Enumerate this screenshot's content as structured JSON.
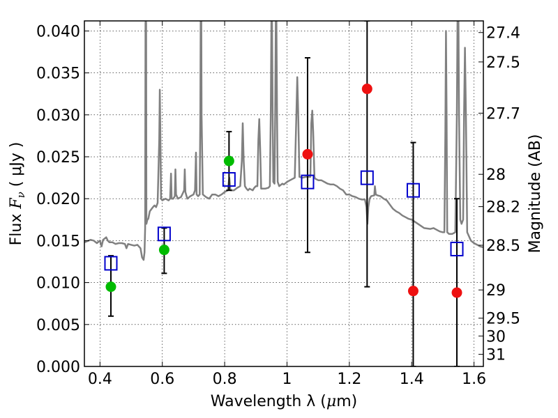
{
  "chart_data": {
    "type": "scatter",
    "xlabel": "Wavelength  λ (μm)",
    "ylabel": "Flux  F_ν  ( μJy )",
    "ylabel_parts": {
      "prefix": "Flux  ",
      "symbol": "F",
      "subscript": "ν",
      "suffix": "  ( μJy )"
    },
    "xlabel_parts": {
      "prefix": "Wavelength  λ (",
      "mu": "μ",
      "suffix": "m)"
    },
    "ylabel_right": "Magnitude (AB)",
    "xlim": [
      0.35,
      1.63
    ],
    "ylim": [
      0.0,
      0.0412
    ],
    "grid": true,
    "x_ticks": [
      {
        "value": 0.4,
        "label": "0.4"
      },
      {
        "value": 0.6,
        "label": "0.6"
      },
      {
        "value": 0.8,
        "label": "0.8"
      },
      {
        "value": 1.0,
        "label": "1"
      },
      {
        "value": 1.2,
        "label": "1.2"
      },
      {
        "value": 1.4,
        "label": "1.4"
      },
      {
        "value": 1.6,
        "label": "1.6"
      }
    ],
    "y_ticks": [
      {
        "value": 0.0,
        "label": "0.000"
      },
      {
        "value": 0.005,
        "label": "0.005"
      },
      {
        "value": 0.01,
        "label": "0.010"
      },
      {
        "value": 0.015,
        "label": "0.015"
      },
      {
        "value": 0.02,
        "label": "0.020"
      },
      {
        "value": 0.025,
        "label": "0.025"
      },
      {
        "value": 0.03,
        "label": "0.030"
      },
      {
        "value": 0.035,
        "label": "0.035"
      },
      {
        "value": 0.04,
        "label": "0.040"
      }
    ],
    "mag_ticks": [
      {
        "value": 27.4,
        "label": "27.4"
      },
      {
        "value": 27.5,
        "label": "27.5"
      },
      {
        "value": 27.7,
        "label": "27.7"
      },
      {
        "value": 28.0,
        "label": "28"
      },
      {
        "value": 28.2,
        "label": "28.2"
      },
      {
        "value": 28.5,
        "label": "28.5"
      },
      {
        "value": 29.0,
        "label": "29"
      },
      {
        "value": 29.5,
        "label": "29.5"
      },
      {
        "value": 30.0,
        "label": "30"
      },
      {
        "value": 31.0,
        "label": "31"
      }
    ],
    "series": [
      {
        "kind": "errorbar-points",
        "color": "#00bb00",
        "points": [
          {
            "x": 0.435,
            "y": 0.0095,
            "lo": 0.006,
            "hi": 0.0132
          },
          {
            "x": 0.606,
            "y": 0.0139,
            "lo": 0.0111,
            "hi": 0.0165
          },
          {
            "x": 0.814,
            "y": 0.0245,
            "lo": 0.021,
            "hi": 0.028
          }
        ]
      },
      {
        "kind": "errorbar-points",
        "color": "#ee1111",
        "points": [
          {
            "x": 1.066,
            "y": 0.0253,
            "lo": 0.0136,
            "hi": 0.0368
          },
          {
            "x": 1.257,
            "y": 0.0331,
            "lo": 0.0095,
            "hi": 0.0412
          },
          {
            "x": 1.405,
            "y": 0.009,
            "lo": 0.0,
            "hi": 0.0267
          },
          {
            "x": 1.545,
            "y": 0.0088,
            "lo": 0.0,
            "hi": 0.02
          }
        ]
      },
      {
        "kind": "open-squares",
        "color": "#0000cc",
        "points": [
          {
            "x": 0.435,
            "y": 0.0123
          },
          {
            "x": 0.606,
            "y": 0.0158
          },
          {
            "x": 0.814,
            "y": 0.0223
          },
          {
            "x": 1.066,
            "y": 0.022
          },
          {
            "x": 1.257,
            "y": 0.0225
          },
          {
            "x": 1.405,
            "y": 0.021
          },
          {
            "x": 1.545,
            "y": 0.014
          }
        ]
      },
      {
        "kind": "spectrum",
        "color": "#808080",
        "points": [
          [
            0.35,
            0.0148
          ],
          [
            0.37,
            0.0151
          ],
          [
            0.38,
            0.015
          ],
          [
            0.39,
            0.0147
          ],
          [
            0.4,
            0.015
          ],
          [
            0.405,
            0.0143
          ],
          [
            0.41,
            0.0151
          ],
          [
            0.42,
            0.0154
          ],
          [
            0.425,
            0.015
          ],
          [
            0.43,
            0.0148
          ],
          [
            0.44,
            0.0148
          ],
          [
            0.45,
            0.0146
          ],
          [
            0.46,
            0.0147
          ],
          [
            0.47,
            0.0147
          ],
          [
            0.48,
            0.0146
          ],
          [
            0.485,
            0.0141
          ],
          [
            0.49,
            0.0146
          ],
          [
            0.5,
            0.0145
          ],
          [
            0.51,
            0.0144
          ],
          [
            0.52,
            0.0145
          ],
          [
            0.53,
            0.0141
          ],
          [
            0.535,
            0.013
          ],
          [
            0.54,
            0.0127
          ],
          [
            0.543,
            0.0136
          ],
          [
            0.545,
            0.0165
          ],
          [
            0.546,
            0.041
          ],
          [
            0.547,
            0.0412
          ],
          [
            0.548,
            0.041
          ],
          [
            0.549,
            0.017
          ],
          [
            0.552,
            0.0175
          ],
          [
            0.555,
            0.0176
          ],
          [
            0.56,
            0.0185
          ],
          [
            0.57,
            0.019
          ],
          [
            0.575,
            0.0192
          ],
          [
            0.58,
            0.019
          ],
          [
            0.585,
            0.0195
          ],
          [
            0.59,
            0.027
          ],
          [
            0.592,
            0.033
          ],
          [
            0.594,
            0.027
          ],
          [
            0.596,
            0.02
          ],
          [
            0.6,
            0.0198
          ],
          [
            0.61,
            0.02
          ],
          [
            0.62,
            0.0198
          ],
          [
            0.625,
            0.02
          ],
          [
            0.628,
            0.023
          ],
          [
            0.63,
            0.02
          ],
          [
            0.635,
            0.02
          ],
          [
            0.64,
            0.0203
          ],
          [
            0.642,
            0.0235
          ],
          [
            0.644,
            0.0205
          ],
          [
            0.65,
            0.02
          ],
          [
            0.66,
            0.0202
          ],
          [
            0.665,
            0.0206
          ],
          [
            0.67,
            0.021
          ],
          [
            0.672,
            0.0235
          ],
          [
            0.674,
            0.0208
          ],
          [
            0.68,
            0.02
          ],
          [
            0.69,
            0.0203
          ],
          [
            0.7,
            0.0205
          ],
          [
            0.705,
            0.021
          ],
          [
            0.708,
            0.0255
          ],
          [
            0.71,
            0.0205
          ],
          [
            0.715,
            0.0203
          ],
          [
            0.72,
            0.0205
          ],
          [
            0.722,
            0.03
          ],
          [
            0.723,
            0.0412
          ],
          [
            0.725,
            0.0412
          ],
          [
            0.726,
            0.03
          ],
          [
            0.73,
            0.0205
          ],
          [
            0.74,
            0.0202
          ],
          [
            0.75,
            0.02
          ],
          [
            0.76,
            0.0205
          ],
          [
            0.77,
            0.0205
          ],
          [
            0.78,
            0.0203
          ],
          [
            0.79,
            0.0205
          ],
          [
            0.8,
            0.0208
          ],
          [
            0.81,
            0.021
          ],
          [
            0.815,
            0.0225
          ],
          [
            0.818,
            0.0212
          ],
          [
            0.82,
            0.021
          ],
          [
            0.83,
            0.021
          ],
          [
            0.84,
            0.0213
          ],
          [
            0.85,
            0.0215
          ],
          [
            0.855,
            0.0245
          ],
          [
            0.858,
            0.029
          ],
          [
            0.861,
            0.0245
          ],
          [
            0.865,
            0.0215
          ],
          [
            0.87,
            0.0212
          ],
          [
            0.875,
            0.021
          ],
          [
            0.88,
            0.0212
          ],
          [
            0.89,
            0.021
          ],
          [
            0.895,
            0.0213
          ],
          [
            0.9,
            0.0215
          ],
          [
            0.905,
            0.0215
          ],
          [
            0.908,
            0.027
          ],
          [
            0.911,
            0.0295
          ],
          [
            0.914,
            0.026
          ],
          [
            0.917,
            0.0212
          ],
          [
            0.92,
            0.0212
          ],
          [
            0.93,
            0.0212
          ],
          [
            0.94,
            0.0213
          ],
          [
            0.945,
            0.0215
          ],
          [
            0.948,
            0.03
          ],
          [
            0.95,
            0.0412
          ],
          [
            0.952,
            0.0412
          ],
          [
            0.954,
            0.03
          ],
          [
            0.956,
            0.022
          ],
          [
            0.96,
            0.0218
          ],
          [
            0.962,
            0.03
          ],
          [
            0.964,
            0.0412
          ],
          [
            0.966,
            0.0412
          ],
          [
            0.968,
            0.03
          ],
          [
            0.97,
            0.022
          ],
          [
            0.975,
            0.0215
          ],
          [
            0.985,
            0.0218
          ],
          [
            0.99,
            0.0217
          ],
          [
            1.0,
            0.022
          ],
          [
            1.01,
            0.0222
          ],
          [
            1.02,
            0.0224
          ],
          [
            1.025,
            0.0225
          ],
          [
            1.03,
            0.03
          ],
          [
            1.033,
            0.0345
          ],
          [
            1.036,
            0.03
          ],
          [
            1.04,
            0.0226
          ],
          [
            1.05,
            0.0225
          ],
          [
            1.06,
            0.0226
          ],
          [
            1.07,
            0.0226
          ],
          [
            1.075,
            0.0226
          ],
          [
            1.078,
            0.029
          ],
          [
            1.081,
            0.0305
          ],
          [
            1.084,
            0.028
          ],
          [
            1.088,
            0.0226
          ],
          [
            1.09,
            0.0224
          ],
          [
            1.1,
            0.0222
          ],
          [
            1.11,
            0.0222
          ],
          [
            1.12,
            0.022
          ],
          [
            1.13,
            0.0218
          ],
          [
            1.14,
            0.0217
          ],
          [
            1.15,
            0.0217
          ],
          [
            1.16,
            0.0215
          ],
          [
            1.17,
            0.0212
          ],
          [
            1.18,
            0.021
          ],
          [
            1.19,
            0.0205
          ],
          [
            1.2,
            0.0205
          ],
          [
            1.21,
            0.0203
          ],
          [
            1.22,
            0.0202
          ],
          [
            1.23,
            0.02
          ],
          [
            1.24,
            0.0199
          ],
          [
            1.25,
            0.0199
          ],
          [
            1.255,
            0.019
          ],
          [
            1.258,
            0.017
          ],
          [
            1.261,
            0.019
          ],
          [
            1.265,
            0.02
          ],
          [
            1.27,
            0.0203
          ],
          [
            1.28,
            0.0204
          ],
          [
            1.282,
            0.0215
          ],
          [
            1.285,
            0.0205
          ],
          [
            1.29,
            0.0204
          ],
          [
            1.3,
            0.0203
          ],
          [
            1.31,
            0.02
          ],
          [
            1.32,
            0.0198
          ],
          [
            1.33,
            0.0193
          ],
          [
            1.34,
            0.0188
          ],
          [
            1.35,
            0.0185
          ],
          [
            1.36,
            0.0183
          ],
          [
            1.37,
            0.018
          ],
          [
            1.38,
            0.0178
          ],
          [
            1.39,
            0.0176
          ],
          [
            1.4,
            0.0175
          ],
          [
            1.42,
            0.017
          ],
          [
            1.44,
            0.0165
          ],
          [
            1.46,
            0.0164
          ],
          [
            1.47,
            0.0165
          ],
          [
            1.48,
            0.0163
          ],
          [
            1.49,
            0.0161
          ],
          [
            1.5,
            0.016
          ],
          [
            1.505,
            0.016
          ],
          [
            1.508,
            0.028
          ],
          [
            1.51,
            0.04
          ],
          [
            1.512,
            0.03
          ],
          [
            1.514,
            0.016
          ],
          [
            1.52,
            0.0158
          ],
          [
            1.53,
            0.0158
          ],
          [
            1.54,
            0.016
          ],
          [
            1.545,
            0.03
          ],
          [
            1.547,
            0.0412
          ],
          [
            1.55,
            0.0412
          ],
          [
            1.552,
            0.03
          ],
          [
            1.556,
            0.0175
          ],
          [
            1.56,
            0.017
          ],
          [
            1.565,
            0.0175
          ],
          [
            1.568,
            0.03
          ],
          [
            1.571,
            0.038
          ],
          [
            1.574,
            0.03
          ],
          [
            1.578,
            0.016
          ],
          [
            1.59,
            0.015
          ],
          [
            1.6,
            0.0147
          ],
          [
            1.61,
            0.0145
          ],
          [
            1.62,
            0.0143
          ],
          [
            1.63,
            0.0142
          ]
        ]
      }
    ]
  }
}
